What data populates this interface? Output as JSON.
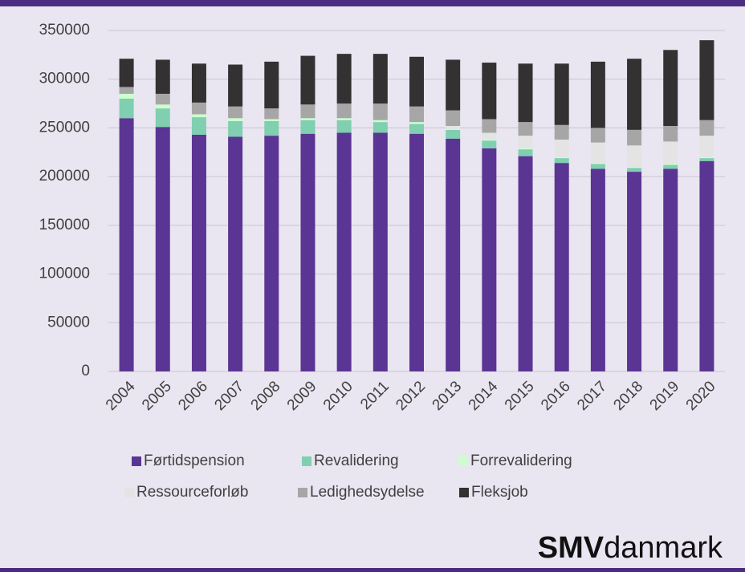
{
  "chart_data": {
    "type": "stacked_bar",
    "categories": [
      "2004",
      "2005",
      "2006",
      "2007",
      "2008",
      "2009",
      "2010",
      "2011",
      "2012",
      "2013",
      "2014",
      "2015",
      "2016",
      "2017",
      "2018",
      "2019",
      "2020"
    ],
    "series": [
      {
        "name": "Førtidspension",
        "color": "#5b3593",
        "values": [
          260000,
          251000,
          243000,
          241000,
          242000,
          244000,
          245000,
          245000,
          244000,
          239000,
          229000,
          221000,
          214000,
          208000,
          205000,
          208000,
          216000
        ]
      },
      {
        "name": "Revalidering",
        "color": "#7fcfb0",
        "values": [
          20000,
          19000,
          18000,
          16000,
          15000,
          14000,
          13000,
          11000,
          10000,
          9000,
          8000,
          7000,
          5000,
          5000,
          4000,
          4000,
          3000
        ]
      },
      {
        "name": "Forrevalidering",
        "color": "#ccffcc",
        "values": [
          5000,
          4000,
          3000,
          3000,
          2000,
          2000,
          2000,
          2000,
          2000,
          1000,
          1000,
          1000,
          1000,
          1000,
          1000,
          1000,
          1000
        ]
      },
      {
        "name": "Ressourceforløb",
        "color": "#e4e4e4",
        "values": [
          0,
          0,
          0,
          0,
          0,
          0,
          0,
          0,
          0,
          3000,
          7000,
          13000,
          18000,
          21000,
          22000,
          23000,
          22000
        ]
      },
      {
        "name": "Ledighedsydelse",
        "color": "#a6a6a6",
        "values": [
          7000,
          11000,
          12000,
          12000,
          11000,
          14000,
          15000,
          17000,
          16000,
          16000,
          14000,
          14000,
          15000,
          15000,
          16000,
          16000,
          16000
        ]
      },
      {
        "name": "Fleksjob",
        "color": "#333131",
        "values": [
          29000,
          35000,
          40000,
          43000,
          48000,
          50000,
          51000,
          51000,
          51000,
          52000,
          58000,
          60000,
          63000,
          68000,
          73000,
          78000,
          82000
        ]
      }
    ],
    "ylim": [
      0,
      350000
    ],
    "yticks": [
      0,
      50000,
      100000,
      150000,
      200000,
      250000,
      300000,
      350000
    ],
    "grid": true,
    "legend": "bottom"
  },
  "logo": {
    "bold": "SMV",
    "rest": "danmark"
  }
}
